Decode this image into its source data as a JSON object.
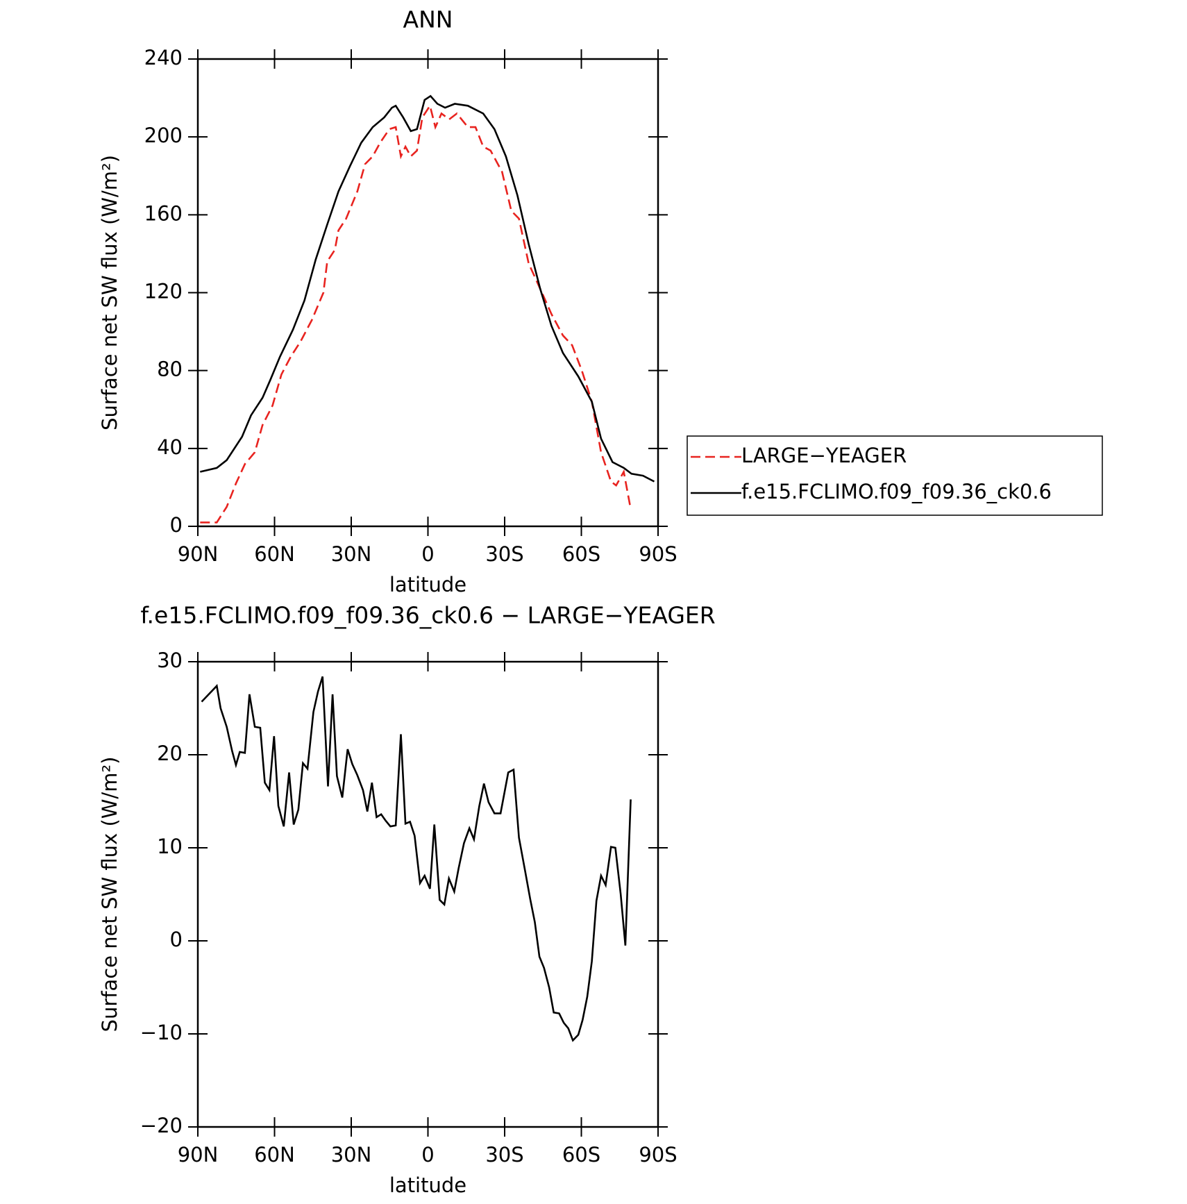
{
  "chart_data": [
    {
      "type": "line",
      "title": "ANN",
      "xlabel": "latitude",
      "ylabel": "Surface net SW flux (W/m²)",
      "xlim": [
        90,
        -90
      ],
      "ylim": [
        0,
        240
      ],
      "xticks": [
        {
          "value": 90,
          "label": "90N"
        },
        {
          "value": 60,
          "label": "60N"
        },
        {
          "value": 30,
          "label": "30N"
        },
        0,
        {
          "value": -30,
          "label": "30S"
        },
        {
          "value": -60,
          "label": "60S"
        },
        {
          "value": -90,
          "label": "90S"
        }
      ],
      "yticks": [
        0,
        40,
        80,
        120,
        160,
        200,
        240
      ],
      "series": [
        {
          "name": "LARGE−YEAGER",
          "color": "#e8231f",
          "dashed": true,
          "x": [
            89.1,
            82.6,
            78.7,
            75.1,
            71.6,
            67.7,
            64.7,
            60.8,
            57.3,
            53.7,
            49.8,
            45.4,
            40.9,
            39.4,
            36.4,
            35.0,
            32.0,
            27.6,
            24.6,
            21.6,
            18.7,
            15.1,
            12.6,
            10.6,
            8.8,
            6.7,
            4.3,
            2.2,
            -0.8,
            -2.9,
            -5.3,
            -8.3,
            -11.3,
            -15.6,
            -18.6,
            -21.6,
            -24.5,
            -29.0,
            -32.6,
            -35.6,
            -39.4,
            -43.9,
            -48.3,
            -52.8,
            -56.4,
            -60.2,
            -64.1,
            -67.7,
            -71.6,
            -73.6,
            -76.6,
            -79.0
          ],
          "values": [
            2,
            2,
            10,
            22,
            32,
            38,
            52,
            62,
            78,
            87,
            95,
            106,
            120,
            136,
            142,
            152,
            158,
            172,
            186,
            190,
            197,
            204,
            205,
            190,
            195,
            190,
            193,
            210,
            216,
            205,
            212,
            209,
            212,
            205,
            205,
            195,
            193,
            182,
            162,
            158,
            135,
            122,
            109,
            98,
            93,
            80,
            64,
            38,
            23,
            21,
            28,
            11
          ]
        },
        {
          "name": "f.e15.FCLIMO.f09_f09.36_ck0.6",
          "color": "#000000",
          "dashed": false,
          "x": [
            89.1,
            82.6,
            78.7,
            72.7,
            69.2,
            64.7,
            61.7,
            57.9,
            52.8,
            48.3,
            43.9,
            39.4,
            35.0,
            30.5,
            26.1,
            21.6,
            17.1,
            14.1,
            12.6,
            9.7,
            6.7,
            4.3,
            1.3,
            -1.0,
            -3.7,
            -6.7,
            -10.5,
            -15.6,
            -21.6,
            -26.0,
            -30.5,
            -35.0,
            -39.4,
            -43.9,
            -48.3,
            -52.8,
            -58.8,
            -64.1,
            -67.7,
            -72.2,
            -76.6,
            -79.6,
            -84.1,
            -88.5
          ],
          "values": [
            28,
            30,
            34,
            46,
            57,
            66,
            75,
            87,
            101,
            116,
            137,
            155,
            172,
            185,
            197,
            205,
            210,
            215,
            216,
            210,
            203,
            204,
            219,
            221,
            217,
            215,
            217,
            216,
            212,
            204,
            190,
            170,
            145,
            122,
            103,
            89,
            77,
            64,
            45,
            33,
            30,
            27,
            26,
            23
          ]
        }
      ]
    },
    {
      "type": "line",
      "title": "f.e15.FCLIMO.f09_f09.36_ck0.6 − LARGE−YEAGER",
      "xlabel": "latitude",
      "ylabel": "Surface net SW flux (W/m²)",
      "xlim": [
        90,
        -90
      ],
      "ylim": [
        -20,
        30
      ],
      "xticks": [
        {
          "value": 90,
          "label": "90N"
        },
        {
          "value": 60,
          "label": "60N"
        },
        {
          "value": 30,
          "label": "30N"
        },
        0,
        {
          "value": -30,
          "label": "30S"
        },
        {
          "value": -60,
          "label": "60S"
        },
        {
          "value": -90,
          "label": "90S"
        }
      ],
      "yticks": [
        {
          "value": -20,
          "label": "−20"
        },
        {
          "value": -10,
          "label": "−10"
        },
        0,
        10,
        20,
        30
      ],
      "series": [
        {
          "color": "#000000",
          "dashed": false,
          "x": [
            88.5,
            82.6,
            81.1,
            78.7,
            76.6,
            75.1,
            73.6,
            71.6,
            69.8,
            67.7,
            65.6,
            63.8,
            62.0,
            60.2,
            58.5,
            56.4,
            54.3,
            52.5,
            50.7,
            48.9,
            47.1,
            44.8,
            43.0,
            41.2,
            39.1,
            37.3,
            35.6,
            33.5,
            31.4,
            29.6,
            27.6,
            25.4,
            23.7,
            21.9,
            20.1,
            18.3,
            16.5,
            14.7,
            12.6,
            10.6,
            8.8,
            7.0,
            5.2,
            3.1,
            1.3,
            -0.8,
            -2.5,
            -4.6,
            -6.4,
            -8.2,
            -10.3,
            -12.0,
            -14.1,
            -16.2,
            -18.0,
            -20.1,
            -21.9,
            -23.7,
            -26.0,
            -28.4,
            -31.4,
            -33.5,
            -35.6,
            -38.0,
            -40.0,
            -41.8,
            -43.6,
            -45.4,
            -47.4,
            -49.2,
            -51.3,
            -53.1,
            -54.9,
            -56.7,
            -58.8,
            -60.5,
            -62.3,
            -64.1,
            -65.9,
            -67.7,
            -69.5,
            -71.6,
            -73.3,
            -75.4,
            -77.2,
            -79.3
          ],
          "values": [
            25.7,
            27.4,
            25,
            23,
            20.4,
            18.9,
            20.3,
            20.2,
            26.5,
            23,
            22.9,
            17,
            16.2,
            22,
            14.5,
            12.3,
            18.1,
            12.5,
            14.1,
            19.1,
            18.5,
            24.6,
            26.8,
            28.4,
            16.6,
            26.5,
            17.7,
            15.4,
            20.6,
            19,
            17.8,
            16.2,
            13.9,
            17,
            13.3,
            13.6,
            12.9,
            12.3,
            12.4,
            22.2,
            12.6,
            12.8,
            11.3,
            6.2,
            7,
            5.6,
            12.5,
            4.4,
            3.9,
            6.7,
            5.3,
            7.8,
            10.5,
            12.1,
            10.9,
            14.5,
            16.9,
            14.9,
            13.7,
            13.7,
            18.1,
            18.4,
            11.1,
            7.5,
            4.5,
            2,
            -1.7,
            -2.9,
            -5,
            -7.7,
            -7.8,
            -8.8,
            -9.4,
            -10.7,
            -10.1,
            -8.5,
            -6,
            -2.2,
            4.3,
            7,
            6,
            10.1,
            10,
            5,
            -0.5,
            15.2
          ]
        }
      ]
    }
  ]
}
